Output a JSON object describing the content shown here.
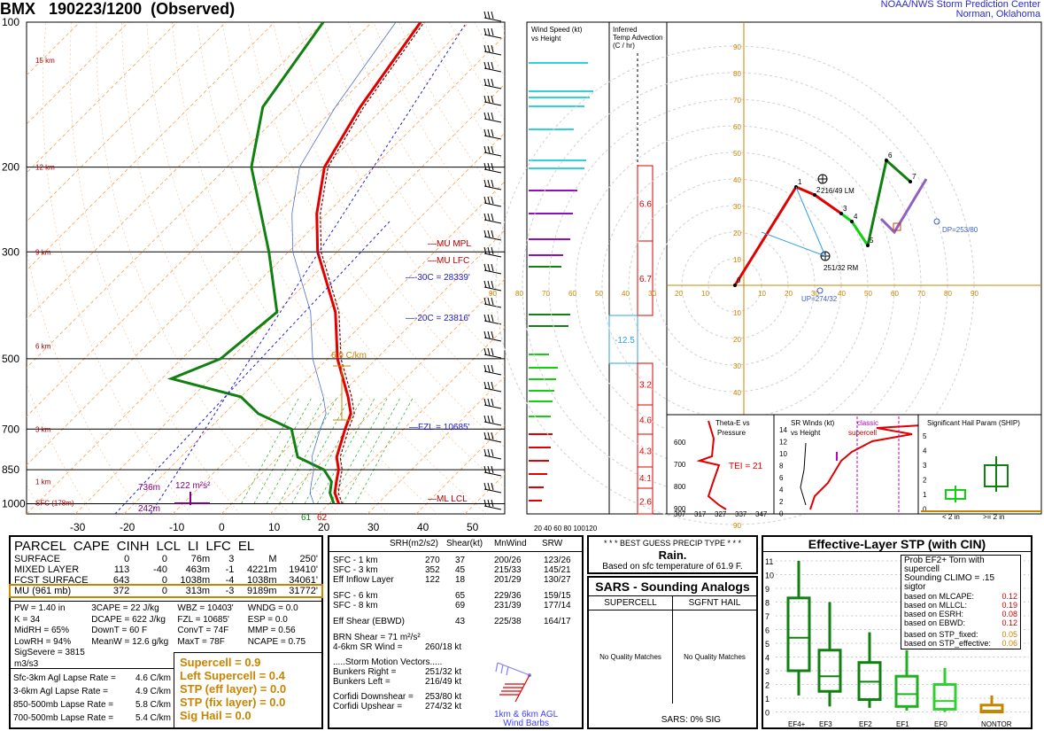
{
  "header": {
    "station": "BMX",
    "datetime": "190223/1200",
    "type": "(Observed)",
    "center_line1": "NOAA/NWS Storm Prediction Center",
    "center_line2": "Norman, Oklahoma"
  },
  "skewt": {
    "pressure_labels": [
      "100",
      "200",
      "300",
      "500",
      "700",
      "850",
      "1000"
    ],
    "temp_ticks": [
      "-30",
      "-20",
      "-10",
      "0",
      "10",
      "20",
      "30",
      "40",
      "50"
    ],
    "height_labels": [
      "15 km",
      "12 km",
      "9 km",
      "6 km",
      "3 km",
      "1 km",
      "SFC (178m)"
    ],
    "annotations": {
      "mu_mpl": "MU MPL",
      "mu_lfc": "MU LFC",
      "m30c": "-30C = 28339'",
      "m20c": "-20C = 23816'",
      "fzl": "FZL = 10685'",
      "ml_lcl": "ML LCL",
      "lapse": "6.9 C/km",
      "srh_ft1": "736m",
      "srh_ft2": "242m",
      "srh_val": "122 m²s²",
      "sfc_t": "62",
      "sfc_td": "61"
    }
  },
  "wind_speed_panel": {
    "title1": "Wind Speed (kt)",
    "title2": "vs Height",
    "axis": "20 40 60 80 100120"
  },
  "inferred_panel": {
    "title1": "Inferred",
    "title2": "Temp Advection",
    "title3": "(C / hr)",
    "values": [
      "6.6",
      "6.7",
      "-12.5",
      "3.2",
      "4.6",
      "4.3",
      "4.1",
      "2.6"
    ]
  },
  "hodograph": {
    "points": [
      {
        "label": "0",
        "x": 0,
        "y": 0
      },
      {
        "label": "1",
        "x": 23,
        "y": 37
      },
      {
        "label": "2",
        "x": 30,
        "y": 34
      },
      {
        "label": "3",
        "x": 40,
        "y": 27
      },
      {
        "label": "4",
        "x": 44,
        "y": 24
      },
      {
        "label": "5",
        "x": 50,
        "y": 15
      },
      {
        "label": "6",
        "x": 57,
        "y": 47
      },
      {
        "label": "7",
        "x": 66,
        "y": 39
      }
    ],
    "lm": "216/49 LM",
    "rm": "251/32 RM",
    "up": "UP=274/32",
    "dp": "DP=253/80",
    "rings": [
      "10",
      "20",
      "30",
      "40",
      "50",
      "60",
      "70",
      "80",
      "90"
    ]
  },
  "theta_panel": {
    "title1": "Theta-E vs",
    "title2": "Pressure",
    "tei": "TEI = 21",
    "xticks": [
      "307",
      "317",
      "327",
      "337",
      "347"
    ],
    "yticks": [
      "600",
      "700",
      "800",
      "900"
    ]
  },
  "srwinds_panel": {
    "title1": "SR Winds (kt)",
    "title2": "vs Height",
    "classic": "classic",
    "supercell": "supercell",
    "yticks": [
      "14",
      "12",
      "10",
      "8",
      "6",
      "4",
      "2",
      "0"
    ]
  },
  "ship_panel": {
    "title": "Significant Hail Param (SHIP)",
    "yticks": [
      "5",
      "4",
      "3",
      "2",
      "1",
      "0"
    ],
    "xl": "< 2 in",
    "xr": ">= 2 in"
  },
  "parcel_table": {
    "headers": [
      "PARCEL",
      "CAPE",
      "CINH",
      "LCL",
      "LI",
      "LFC",
      "EL"
    ],
    "rows": [
      [
        "SURFACE",
        "0",
        "0",
        "76m",
        "3",
        "M",
        "250'"
      ],
      [
        "MIXED LAYER",
        "113",
        "-40",
        "463m",
        "-1",
        "4221m",
        "19410'"
      ],
      [
        "FCST SURFACE",
        "643",
        "0",
        "1038m",
        "-4",
        "1038m",
        "34061'"
      ],
      [
        "MU    (961 mb)",
        "372",
        "0",
        "313m",
        "-3",
        "9189m",
        "31772'"
      ]
    ]
  },
  "indices": {
    "col1": [
      "PW = 1.40 in",
      "K = 34",
      "MidRH = 65%",
      "LowRH = 94%",
      "SigSevere = 3815 m3/s3"
    ],
    "col2": [
      "3CAPE = 22 J/kg",
      "DCAPE = 622 J/kg",
      "DownT = 60 F",
      "MeanW = 12.6 g/kg"
    ],
    "col3": [
      "WBZ = 10403'",
      "FZL = 10685'",
      "ConvT = 74F",
      "MaxT = 78F"
    ],
    "col4": [
      "WNDG = 0.0",
      "ESP = 0.0",
      "MMP = 0.56",
      "NCAPE = 0.75"
    ]
  },
  "lapse_rates": [
    [
      "Sfc-3km Agl Lapse Rate =",
      "4.6 C/km"
    ],
    [
      "3-6km Agl Lapse Rate =",
      "4.9 C/km"
    ],
    [
      "850-500mb Lapse Rate =",
      "5.8 C/km"
    ],
    [
      "700-500mb Lapse Rate =",
      "5.4 C/km"
    ]
  ],
  "composite": [
    "Supercell = 0.9",
    "Left Supercell = 0.4",
    "STP (eff layer) = 0.0",
    "STP (fix layer) = 0.0",
    "Sig Hail = 0.0"
  ],
  "kinematics": {
    "headers": [
      "SRH(m2/s2)",
      "Shear(kt)",
      "MnWind",
      "SRW"
    ],
    "rows": [
      [
        "SFC - 1 km",
        "270",
        "37",
        "200/26",
        "123/26"
      ],
      [
        "SFC - 3 km",
        "352",
        "45",
        "215/33",
        "145/21"
      ],
      [
        "Eff Inflow Layer",
        "122",
        "18",
        "201/29",
        "130/27"
      ],
      [
        "SFC - 6 km",
        "",
        "65",
        "229/36",
        "159/15"
      ],
      [
        "SFC - 8 km",
        "",
        "69",
        "231/39",
        "177/14"
      ],
      [
        "Eff Shear (EBWD)",
        "",
        "43",
        "225/38",
        "164/17"
      ]
    ],
    "brn": "BRN Shear = 71 m²/s²",
    "srw46": "4-6km SR Wind =",
    "srw46v": "260/18 kt",
    "motion_title": ".....Storm Motion Vectors.....",
    "motion": [
      [
        "Bunkers Right =",
        "251/32 kt"
      ],
      [
        "Bunkers Left =",
        "216/49 kt"
      ],
      [
        "Corfidi Downshear =",
        "253/80 kt"
      ],
      [
        "Corfidi Upshear =",
        "274/32 kt"
      ]
    ],
    "barbs_note1": "1km & 6km AGL",
    "barbs_note2": "Wind Barbs"
  },
  "precip": {
    "title": "* * * BEST GUESS PRECIP TYPE * * *",
    "value": "Rain.",
    "note": "Based on sfc temperature of 61.9 F."
  },
  "sars": {
    "title": "SARS - Sounding Analogs",
    "supercell": "SUPERCELL",
    "sgfnt": "SGFNT HAIL",
    "nq1": "No Quality Matches",
    "nq2": "No Quality Matches",
    "sig": "SARS:  0% SIG"
  },
  "stp": {
    "title": "Effective-Layer STP (with CIN)",
    "prob_title1": "Prob EF2+ Torn with supercell",
    "prob_title2": "Sounding CLIMO = .15 sigtor",
    "probs": [
      [
        "based on MLCAPE:",
        "0.12"
      ],
      [
        "based on MLLCL:",
        "0.19"
      ],
      [
        "based on ESRH:",
        "0.08"
      ],
      [
        "based on EBWD:",
        "0.12"
      ],
      [
        "based on STP_fixed:",
        "0.05"
      ],
      [
        "based on STP_effective:",
        "0.06"
      ]
    ],
    "categories": [
      "EF4+",
      "EF3",
      "EF2",
      "EF1",
      "EF0",
      "NONTOR"
    ],
    "yticks": [
      "11",
      "10",
      "9",
      "8",
      "7",
      "6",
      "5",
      "4",
      "3",
      "2",
      "1",
      "0"
    ]
  },
  "chart_data": [
    {
      "type": "line",
      "title": "Skew-T log-P",
      "y_units": "mb",
      "series": [
        {
          "name": "Temperature",
          "points": [
            [
              1000,
              22
            ],
            [
              950,
              19
            ],
            [
              900,
              17
            ],
            [
              850,
              15
            ],
            [
              800,
              12
            ],
            [
              700,
              8
            ],
            [
              650,
              6
            ],
            [
              600,
              2
            ],
            [
              500,
              -8
            ],
            [
              400,
              -18
            ],
            [
              300,
              -34
            ],
            [
              250,
              -42
            ],
            [
              200,
              -50
            ],
            [
              150,
              -55
            ],
            [
              100,
              -60
            ]
          ]
        },
        {
          "name": "Dewpoint",
          "points": [
            [
              1000,
              21
            ],
            [
              950,
              18
            ],
            [
              900,
              16
            ],
            [
              850,
              12
            ],
            [
              800,
              4
            ],
            [
              700,
              -3
            ],
            [
              650,
              -13
            ],
            [
              600,
              -20
            ],
            [
              550,
              -38
            ],
            [
              500,
              -32
            ],
            [
              400,
              -30
            ],
            [
              300,
              -44
            ],
            [
              200,
              -65
            ],
            [
              150,
              -75
            ],
            [
              100,
              -80
            ]
          ]
        }
      ]
    },
    {
      "type": "line",
      "title": "Hodograph",
      "series": [
        {
          "points": [
            [
              0,
              0
            ],
            [
              23,
              37
            ],
            [
              30,
              34
            ],
            [
              40,
              27
            ],
            [
              44,
              24
            ],
            [
              50,
              15
            ],
            [
              57,
              47
            ],
            [
              66,
              39
            ]
          ]
        }
      ]
    },
    {
      "type": "bar",
      "title": "Effective-Layer STP (with CIN)",
      "categories": [
        "EF4+",
        "EF3",
        "EF2",
        "EF1",
        "EF0",
        "NONTOR"
      ]
    }
  ]
}
